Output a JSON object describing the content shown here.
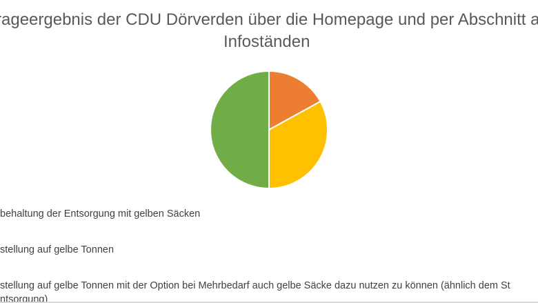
{
  "chart_data": {
    "type": "pie",
    "title_lines": [
      "rageergebnis der CDU Dörverden über die Homepage und per Abschnitt an",
      "Infoständen"
    ],
    "slices": [
      {
        "label": "behaltung der Entsorgung mit gelben Säcken",
        "value": 17,
        "color": "#ed7d31"
      },
      {
        "label": "stellung auf gelbe Tonnen",
        "value": 33,
        "color": "#ffc000"
      },
      {
        "label": "stellung auf gelbe Tonnen mit der Option bei Mehrbedarf auch gelbe Säcke dazu nutzen zu können (ähnlich dem St",
        "value": 50,
        "color": "#70ad47"
      }
    ],
    "legend_continuation": "ntsorgung)",
    "legend_position": "bottom-left"
  }
}
